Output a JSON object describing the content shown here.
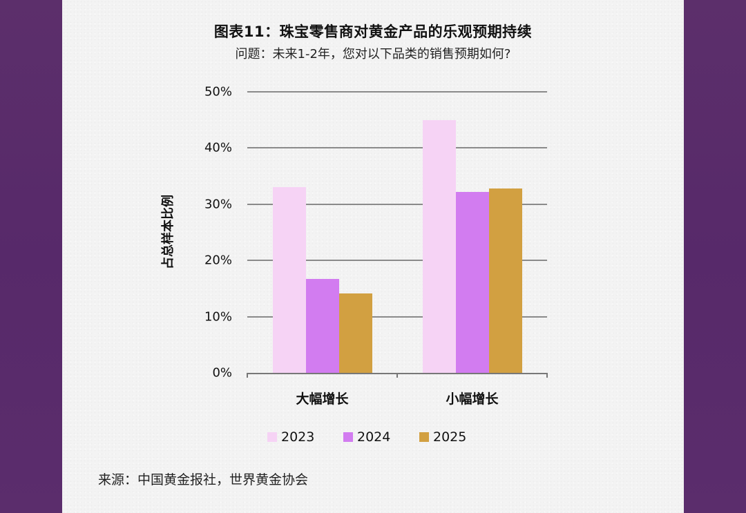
{
  "header": {
    "title": "图表11：珠宝零售商对黄金产品的乐观预期持续",
    "subtitle": "问题：未来1-2年，您对以下品类的销售预期如何?"
  },
  "colors": {
    "frame": "#5a2d6a",
    "panel": "#f3f3f3",
    "series_2023": "#f6d3f5",
    "series_2024": "#d27cf0",
    "series_2025": "#d2a041",
    "gridline": "#8a8a8a"
  },
  "chart_data": {
    "type": "bar",
    "title": "图表11：珠宝零售商对黄金产品的乐观预期持续",
    "subtitle": "问题：未来1-2年，您对以下品类的销售预期如何?",
    "xlabel": "",
    "ylabel": "占总样本比例",
    "categories": [
      "大幅增长",
      "小幅增长"
    ],
    "series": [
      {
        "name": "2023",
        "color": "#f6d3f5",
        "values": [
          33.0,
          45.0
        ]
      },
      {
        "name": "2024",
        "color": "#d27cf0",
        "values": [
          16.7,
          32.2
        ]
      },
      {
        "name": "2025",
        "color": "#d2a041",
        "values": [
          14.1,
          32.8
        ]
      }
    ],
    "yticks": [
      "0%",
      "10%",
      "20%",
      "30%",
      "40%",
      "50%"
    ],
    "ylim": [
      0,
      50
    ],
    "grid": true,
    "legend_position": "bottom"
  },
  "legend": {
    "items": [
      {
        "label": "2023"
      },
      {
        "label": "2024"
      },
      {
        "label": "2025"
      }
    ]
  },
  "footer": {
    "source": "来源：中国黄金报社，世界黄金协会"
  }
}
